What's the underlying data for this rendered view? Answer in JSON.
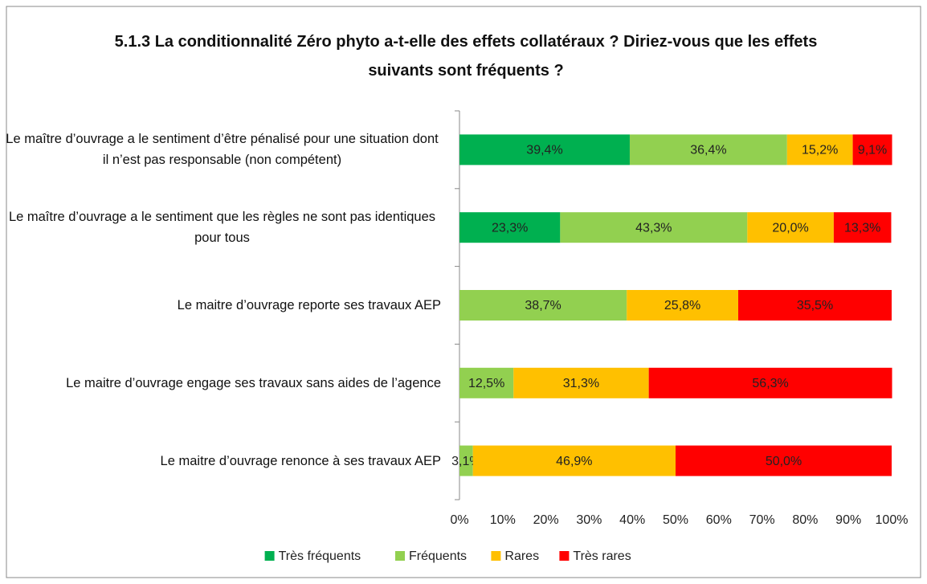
{
  "chart_data": {
    "type": "stacked-bar-horizontal",
    "title": "5.1.3 La conditionnalité Zéro phyto a-t-elle des effets collatéraux ? Diriez-vous que les effets suivants sont fréquents ?",
    "categories": [
      "Le maître d’ouvrage a le sentiment d’être pénalisé pour une situation dont il n’est pas responsable (non compétent)",
      "Le maître d’ouvrage a le sentiment que les règles ne sont pas identiques pour tous",
      "Le maitre d’ouvrage reporte ses travaux AEP",
      "Le maitre d’ouvrage engage ses travaux sans aides de l’agence",
      "Le maitre d’ouvrage renonce à ses travaux AEP"
    ],
    "series": [
      {
        "name": "Très fréquents",
        "color": "#00b050",
        "values": [
          39.4,
          23.3,
          null,
          null,
          null
        ],
        "value_labels": [
          "39,4%",
          "23,3%",
          null,
          null,
          null
        ]
      },
      {
        "name": "Fréquents",
        "color": "#92d050",
        "values": [
          36.4,
          43.3,
          38.7,
          12.5,
          3.1
        ],
        "value_labels": [
          "36,4%",
          "43,3%",
          "38,7%",
          "12,5%",
          "3,1%"
        ]
      },
      {
        "name": "Rares",
        "color": "#ffc000",
        "values": [
          15.2,
          20.0,
          25.8,
          31.3,
          46.9
        ],
        "value_labels": [
          "15,2%",
          "20,0%",
          "25,8%",
          "31,3%",
          "46,9%"
        ]
      },
      {
        "name": "Très rares",
        "color": "#ff0000",
        "values": [
          9.1,
          13.3,
          35.5,
          56.3,
          50.0
        ],
        "value_labels": [
          "9,1%",
          "13,3%",
          "35,5%",
          "56,3%",
          "50,0%"
        ]
      }
    ],
    "xlim": [
      0,
      100
    ],
    "xticks": [
      {
        "value": 0,
        "label": "0%"
      },
      {
        "value": 10,
        "label": "10%"
      },
      {
        "value": 20,
        "label": "20%"
      },
      {
        "value": 30,
        "label": "30%"
      },
      {
        "value": 40,
        "label": "40%"
      },
      {
        "value": 50,
        "label": "50%"
      },
      {
        "value": 60,
        "label": "60%"
      },
      {
        "value": 70,
        "label": "70%"
      },
      {
        "value": 80,
        "label": "80%"
      },
      {
        "value": 90,
        "label": "90%"
      },
      {
        "value": 100,
        "label": "100%"
      }
    ],
    "legend": "bottom"
  }
}
